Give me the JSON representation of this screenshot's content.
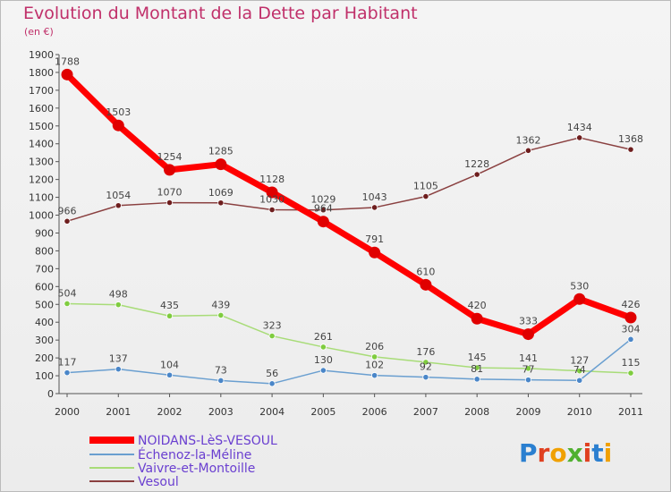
{
  "header": {
    "title": "Evolution du Montant de la Dette par Habitant",
    "unit": "(en €)"
  },
  "logo": {
    "text": "Proxiti"
  },
  "chart_data": {
    "type": "line",
    "title": "Evolution du Montant de la Dette par Habitant",
    "ylabel": "(en €)",
    "x": [
      "2000",
      "2001",
      "2002",
      "2003",
      "2004",
      "2005",
      "2006",
      "2007",
      "2008",
      "2009",
      "2010",
      "2011"
    ],
    "ylim": [
      0,
      1900
    ],
    "yticks": [
      0,
      100,
      200,
      300,
      400,
      500,
      600,
      700,
      800,
      900,
      1000,
      1100,
      1200,
      1300,
      1400,
      1500,
      1600,
      1700,
      1800,
      1900
    ],
    "grid": false,
    "legend_position": "bottom-left",
    "series": [
      {
        "name": "NOIDANS-LèS-VESOUL",
        "color": "#ff0000",
        "marker": "#e00000",
        "values": [
          1788,
          1503,
          1254,
          1285,
          1128,
          964,
          791,
          610,
          420,
          333,
          530,
          426
        ]
      },
      {
        "name": "Échenoz-la-Méline",
        "color": "#6a9fd0",
        "marker": "#4a86c8",
        "values": [
          117,
          137,
          104,
          73,
          56,
          130,
          102,
          92,
          81,
          77,
          74,
          304
        ]
      },
      {
        "name": "Vaivre-et-Montoille",
        "color": "#a8dc78",
        "marker": "#7fcc3f",
        "values": [
          504,
          498,
          435,
          439,
          323,
          261,
          206,
          176,
          145,
          141,
          127,
          115
        ]
      },
      {
        "name": "Vesoul",
        "color": "#8a4040",
        "marker": "#6e1e1e",
        "values": [
          966,
          1054,
          1070,
          1069,
          1030,
          1029,
          1043,
          1105,
          1228,
          1362,
          1434,
          1368
        ]
      }
    ]
  }
}
